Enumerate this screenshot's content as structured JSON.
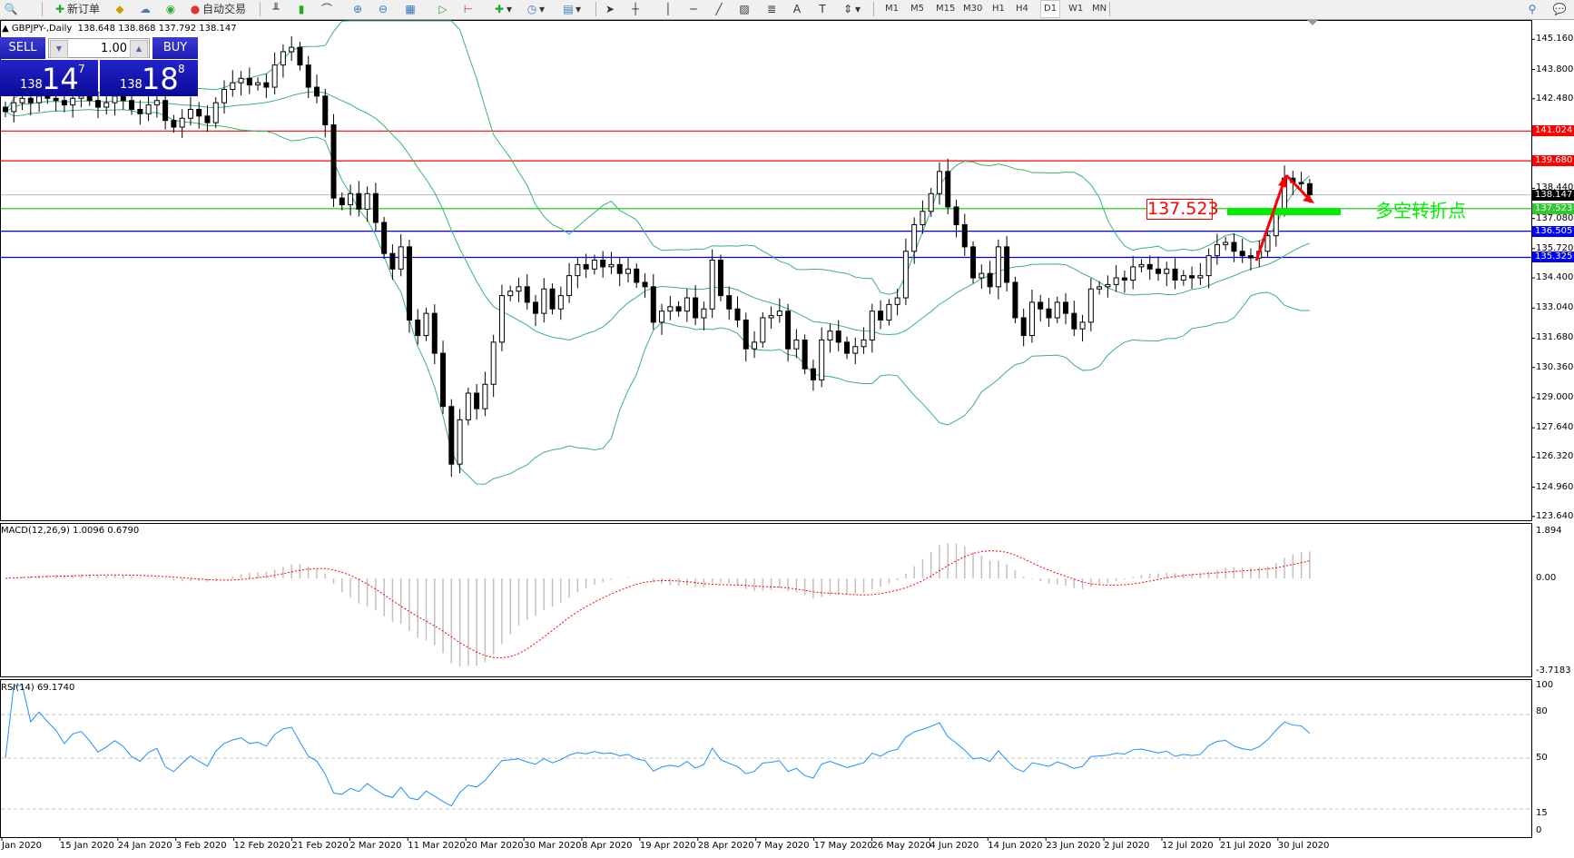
{
  "toolbar": {
    "new_order": "新订单",
    "auto_trading": "自动交易",
    "timeframes": [
      "M1",
      "M5",
      "M15",
      "M30",
      "H1",
      "H4",
      "D1",
      "W1",
      "MN"
    ],
    "active_timeframe": "D1"
  },
  "chart": {
    "header": "GBPJPY-,Daily",
    "ohlc": "138.648 138.868 137.792 138.147",
    "last_ohlc": {
      "open": 138.648,
      "high": 138.868,
      "low": 137.792,
      "close": 138.147
    }
  },
  "trade_panel": {
    "sell_label": "SELL",
    "buy_label": "BUY",
    "lot": "1.00",
    "sell_prefix": "138",
    "sell_big": "14",
    "sell_sup": "7",
    "buy_prefix": "138",
    "buy_big": "18",
    "buy_sup": "8"
  },
  "price_axis": [
    "145.160",
    "143.800",
    "142.480",
    "138.440",
    "137.080",
    "135.720",
    "134.400",
    "133.040",
    "131.680",
    "130.360",
    "129.000",
    "127.640",
    "126.320",
    "124.960",
    "123.640"
  ],
  "hlines": [
    {
      "price": "141.024",
      "color": "#ff0000"
    },
    {
      "price": "139.680",
      "color": "#ff0000"
    },
    {
      "price": "138.147",
      "color": "#000000",
      "line": "#c0c0c0"
    },
    {
      "price": "137.523",
      "color": "#32c832",
      "line": "#00cc00"
    },
    {
      "price": "136.505",
      "color": "#0000ff"
    },
    {
      "price": "135.325",
      "color": "#0000ff"
    }
  ],
  "annotations": {
    "level_box": "137.523",
    "pivot_text": "多空转折点",
    "arrow_color": "#ff0000",
    "pivot_color": "#00ee00"
  },
  "macd": {
    "label": "MACD(12,26,9) 1.0096 0.6790",
    "axis": [
      "1.894",
      "0.00",
      "-3.7183"
    ]
  },
  "rsi": {
    "label": "RSI(14) 69.1740",
    "axis": [
      "100",
      "80",
      "50",
      "15",
      "0"
    ]
  },
  "dates": [
    "Jan 2020",
    "15 Jan 2020",
    "24 Jan 2020",
    "3 Feb 2020",
    "12 Feb 2020",
    "21 Feb 2020",
    "2 Mar 2020",
    "11 Mar 2020",
    "20 Mar 2020",
    "30 Mar 2020",
    "8 Apr 2020",
    "19 Apr 2020",
    "28 Apr 2020",
    "7 May 2020",
    "17 May 2020",
    "26 May 2020",
    "4 Jun 2020",
    "14 Jun 2020",
    "23 Jun 2020",
    "2 Jul 2020",
    "12 Jul 2020",
    "21 Jul 2020",
    "30 Jul 2020"
  ],
  "chart_data": {
    "type": "candlestick",
    "symbol": "GBPJPY",
    "timeframe": "Daily",
    "price_range": [
      123.64,
      145.16
    ],
    "indicators": [
      "Bollinger Bands(20,2)",
      "MACD(12,26,9)",
      "RSI(14)"
    ],
    "closes": [
      141.9,
      142.3,
      142.5,
      142.3,
      142.6,
      142.5,
      142.4,
      142.2,
      142.5,
      142.6,
      142.4,
      142.1,
      142.3,
      142.6,
      142.4,
      142.0,
      141.8,
      142.2,
      142.4,
      141.5,
      141.2,
      141.6,
      142.0,
      141.7,
      141.4,
      142.3,
      142.9,
      143.2,
      143.4,
      143.1,
      143.2,
      143.0,
      144.0,
      144.6,
      144.8,
      144.0,
      143.0,
      142.6,
      141.3,
      138.0,
      137.7,
      138.2,
      137.5,
      138.2,
      136.9,
      135.5,
      134.8,
      135.8,
      132.5,
      131.8,
      132.8,
      131.0,
      128.6,
      126.0,
      128.0,
      129.2,
      128.5,
      129.6,
      131.5,
      133.6,
      133.8,
      134.0,
      133.3,
      132.8,
      133.9,
      133.0,
      133.6,
      134.5,
      135.0,
      134.8,
      135.2,
      134.9,
      135.0,
      134.6,
      134.8,
      134.2,
      134.0,
      132.4,
      132.9,
      133.1,
      132.9,
      133.5,
      132.6,
      133.0,
      135.2,
      133.6,
      133.0,
      132.5,
      131.2,
      131.5,
      132.6,
      132.7,
      132.9,
      131.2,
      131.6,
      130.3,
      129.8,
      131.6,
      132.0,
      131.5,
      131.0,
      131.3,
      131.6,
      132.9,
      132.5,
      133.2,
      133.5,
      135.6,
      136.8,
      137.4,
      138.2,
      139.2,
      137.6,
      136.8,
      135.8,
      134.4,
      134.6,
      134.0,
      135.8,
      134.2,
      132.6,
      131.8,
      133.3,
      133.0,
      132.6,
      133.3,
      132.8,
      132.1,
      132.4,
      133.9,
      134.0,
      134.1,
      134.4,
      134.3,
      134.9,
      135.0,
      134.8,
      134.6,
      134.8,
      134.3,
      134.5,
      134.4,
      134.5,
      135.4,
      135.9,
      136.0,
      135.6,
      135.4,
      135.3,
      135.6,
      136.3,
      137.5,
      138.9,
      138.7,
      138.648,
      138.147
    ]
  }
}
